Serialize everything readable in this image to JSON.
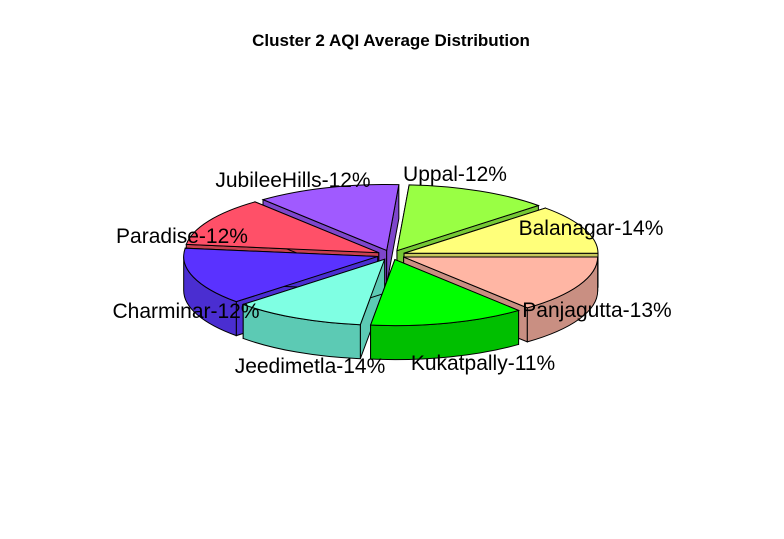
{
  "chart_data": {
    "type": "pie",
    "style": "3d-exploded",
    "title": "Cluster 2 AQI Average Distribution",
    "slices": [
      {
        "label": "Balanagar-14%",
        "value": 14,
        "color": "#ffb6a4",
        "side": "#c98f82"
      },
      {
        "label": "Panjagutta-13%",
        "value": 13,
        "color": "#00ff00",
        "side": "#00bf00"
      },
      {
        "label": "Kukatpally-11%",
        "value": 11,
        "color": "#7fffe3",
        "side": "#5ccab4"
      },
      {
        "label": "Jeedimetla-14%",
        "value": 14,
        "color": "#5a32ff",
        "side": "#4a2ed1"
      },
      {
        "label": "Charminar-12%",
        "value": 12,
        "color": "#ff5068",
        "side": "#c94050"
      },
      {
        "label": "Paradise-12%",
        "value": 12,
        "color": "#a05aff",
        "side": "#7e46cc"
      },
      {
        "label": "JubileeHills-12%",
        "value": 12,
        "color": "#99ff44",
        "side": "#75c834"
      },
      {
        "label": "Uppal-12%",
        "value": 12,
        "color": "#ffff7a",
        "side": "#c8c85c"
      }
    ]
  }
}
